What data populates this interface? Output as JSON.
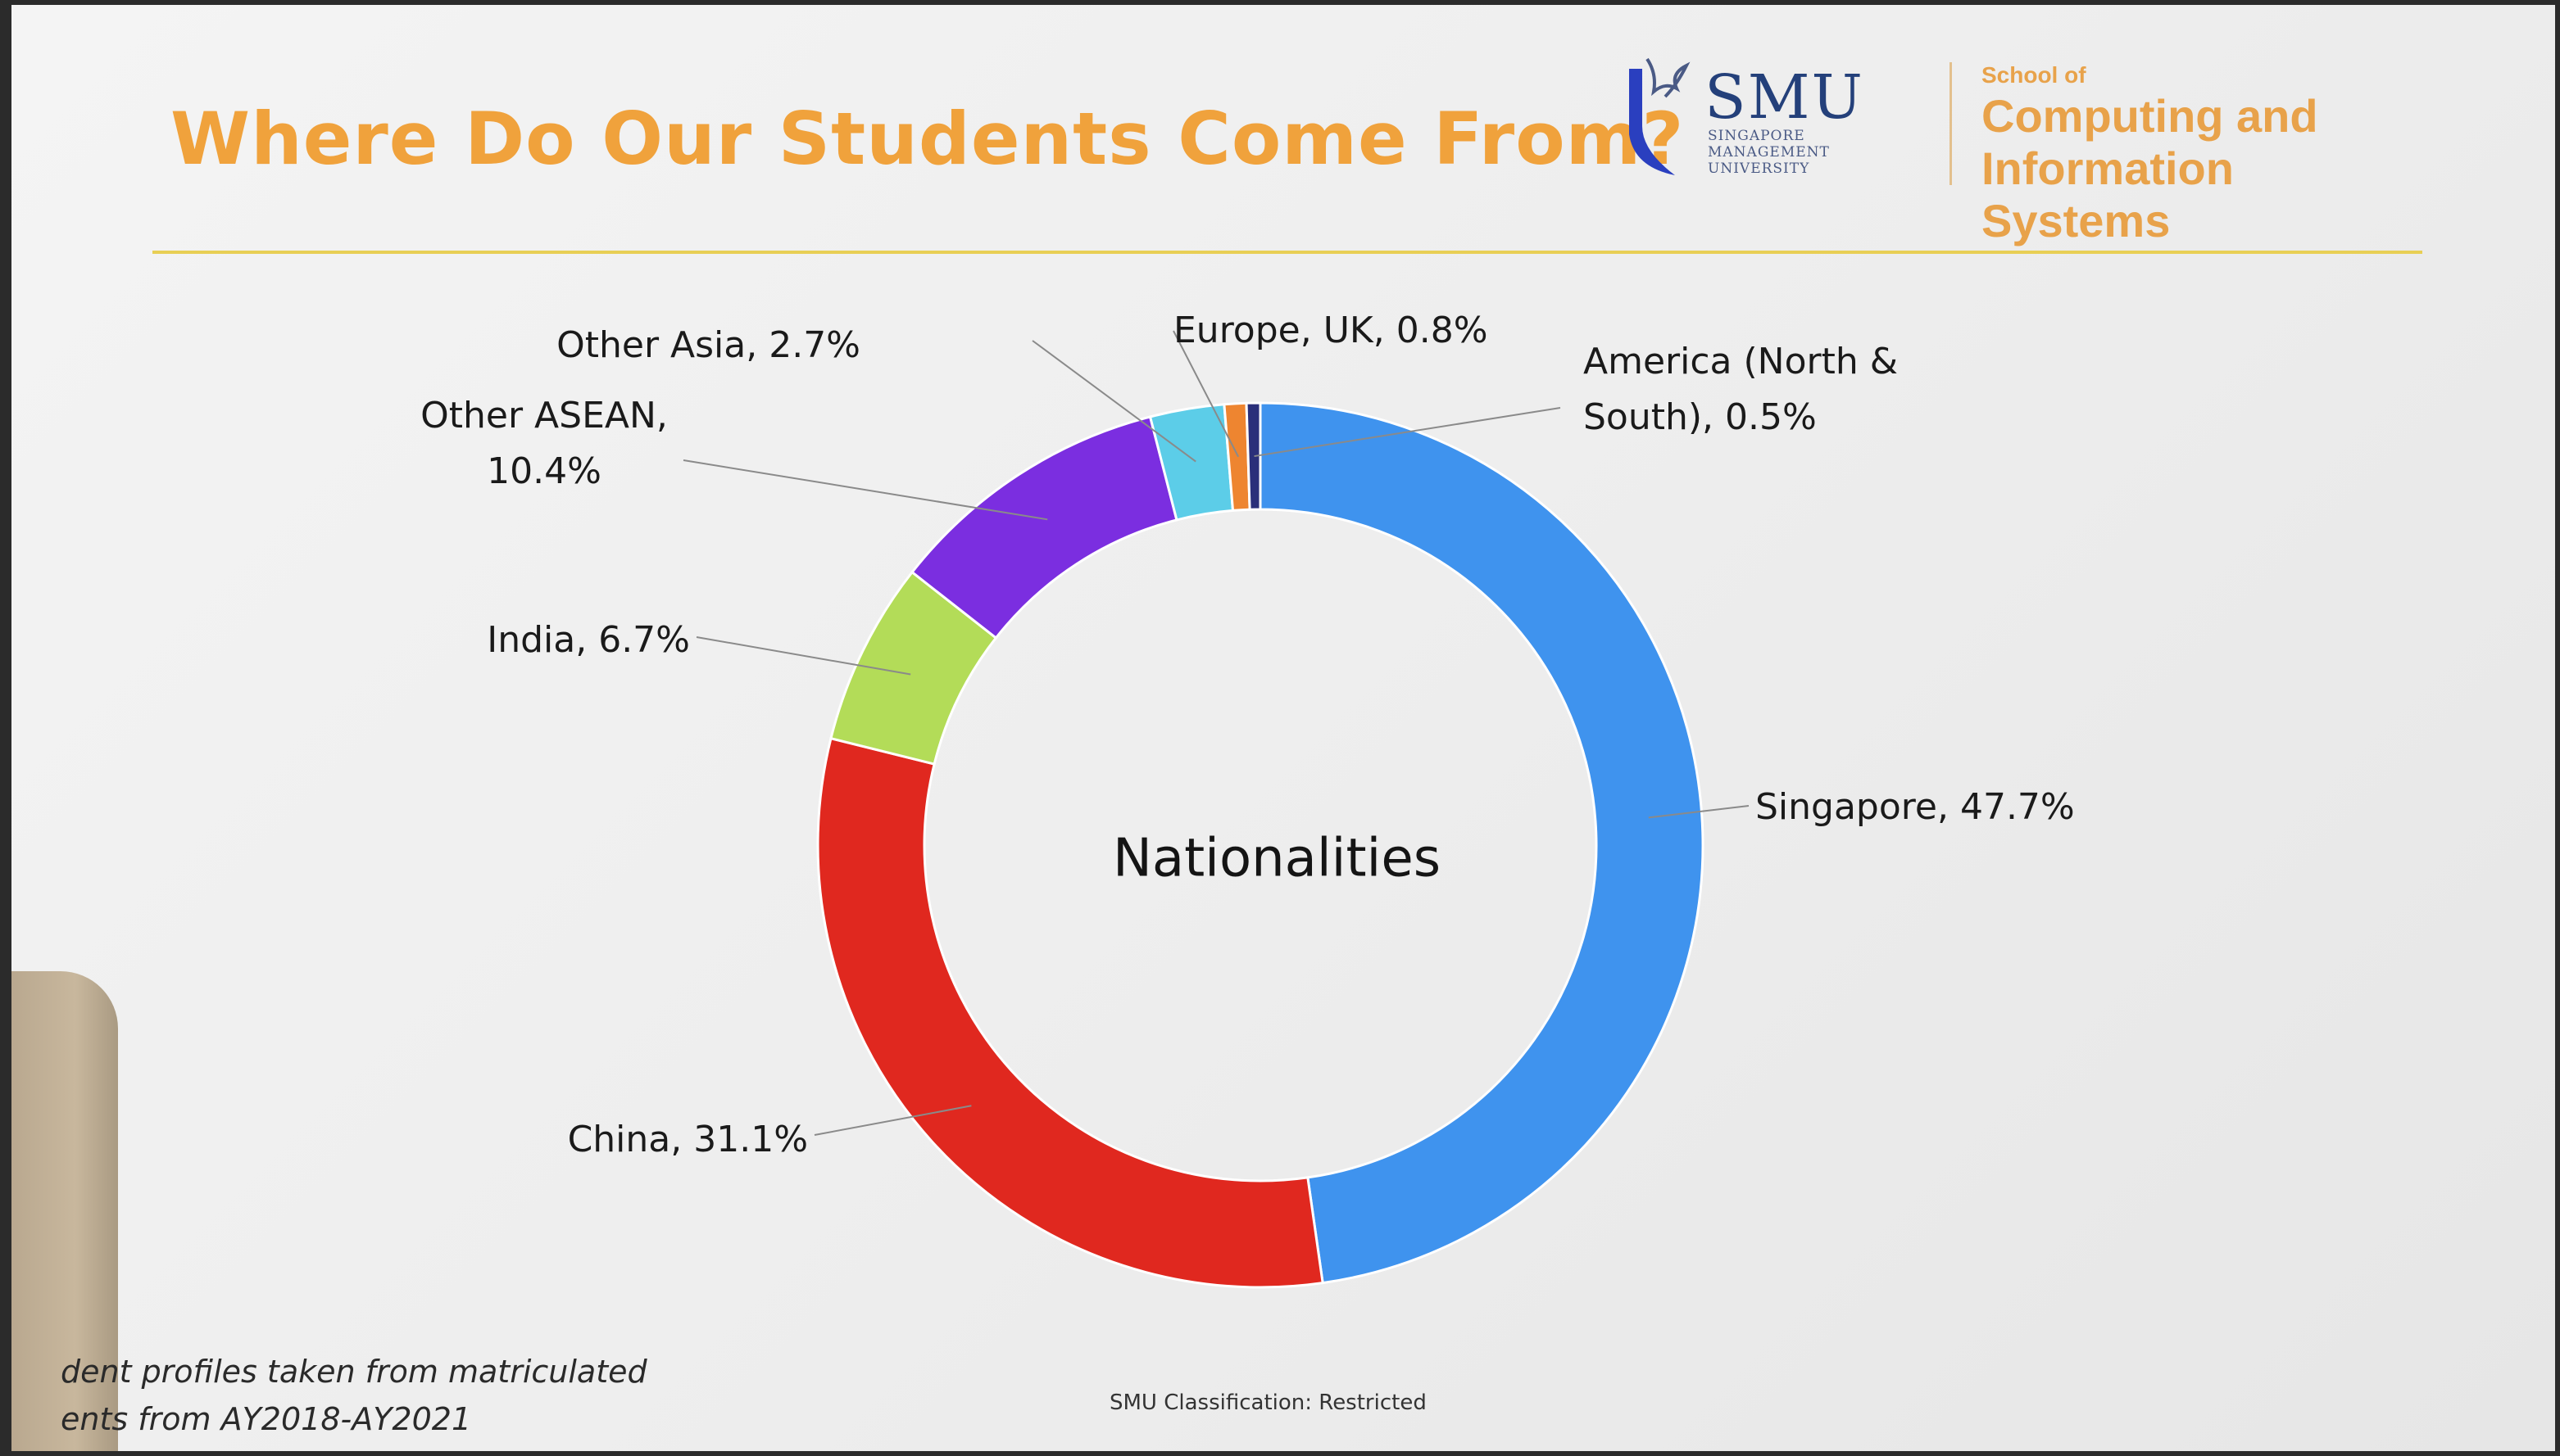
{
  "slide": {
    "title": "Where Do Our Students Come From?",
    "logo": {
      "wordmark": "SMU",
      "university_line1": "SINGAPORE MANAGEMENT",
      "university_line2": "UNIVERSITY",
      "school_small": "School of",
      "school_line1": "Computing and",
      "school_line2": "Information Systems"
    },
    "footnote_line1": "dent profiles taken from matriculated",
    "footnote_line2": "ents from AY2018-AY2021",
    "classification": "SMU Classification: Restricted"
  },
  "chart_data": {
    "type": "pie",
    "donut": true,
    "title": "Nationalities",
    "categories": [
      "Singapore",
      "China",
      "India",
      "Other ASEAN",
      "Other Asia",
      "Europe, UK",
      "America (North & South)"
    ],
    "values": [
      47.7,
      31.1,
      6.7,
      10.4,
      2.7,
      0.8,
      0.5
    ],
    "unit": "%",
    "labels": [
      [
        "Singapore, 47.7%"
      ],
      [
        "China, 31.1%"
      ],
      [
        "India, 6.7%"
      ],
      [
        "Other ASEAN,",
        "10.4%"
      ],
      [
        "Other Asia, 2.7%"
      ],
      [
        "Europe, UK, 0.8%"
      ],
      [
        "America (North &",
        "South), 0.5%"
      ]
    ],
    "colors": [
      "#3f93ee",
      "#e0281f",
      "#b3dc58",
      "#7b2ee0",
      "#5ccde8",
      "#ee8530",
      "#2a2f7a"
    ],
    "legend": "none"
  }
}
